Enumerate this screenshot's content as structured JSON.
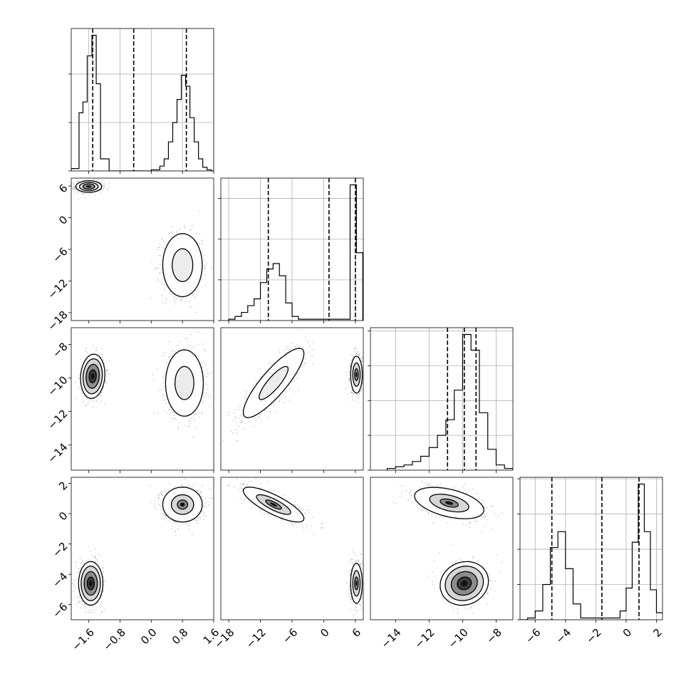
{
  "chart_data": {
    "type": "corner",
    "title": "",
    "grid": true,
    "parameters": [
      {
        "range": [
          -2.05,
          1.6
        ],
        "ticks": [
          -1.6,
          -0.8,
          0.0,
          0.8,
          1.6
        ],
        "tick_labels": [
          "−1.6",
          "−0.8",
          "0.0",
          "0.8",
          "1.6"
        ],
        "quantiles": [
          -1.5,
          -0.45,
          0.9
        ],
        "histogram": {
          "x": [
            -2.05,
            -1.85,
            -1.75,
            -1.64,
            -1.52,
            -1.41,
            -1.3,
            -1.08,
            0.0,
            0.22,
            0.33,
            0.44,
            0.55,
            0.66,
            0.77,
            0.88,
            0.99,
            1.1,
            1.21,
            1.32,
            1.43,
            1.54
          ],
          "y": [
            0.02,
            0.48,
            0.57,
            0.95,
            1.12,
            0.72,
            0.1,
            0.0,
            0.01,
            0.04,
            0.1,
            0.24,
            0.4,
            0.59,
            0.79,
            0.7,
            0.44,
            0.24,
            0.1,
            0.03,
            0.01,
            0.0
          ]
        },
        "hist_grid_y": [
          0.0,
          0.4,
          0.8
        ]
      },
      {
        "range": [
          -19.5,
          7.5
        ],
        "ticks": [
          -18,
          -12,
          -6,
          0,
          6
        ],
        "tick_labels": [
          "−18",
          "−12",
          "−6",
          "0",
          "6"
        ],
        "quantiles": [
          -10.5,
          1.0,
          6.0
        ],
        "histogram": {
          "x": [
            -18.0,
            -16.8,
            -15.6,
            -14.4,
            -13.2,
            -12.0,
            -10.8,
            -9.6,
            -8.4,
            -7.2,
            -6.0,
            -4.8,
            5.0,
            6.2
          ],
          "y": [
            0.01,
            0.03,
            0.06,
            0.11,
            0.16,
            0.28,
            0.38,
            0.42,
            0.33,
            0.13,
            0.03,
            0.01,
            1.0,
            0.5
          ]
        },
        "hist_grid_y": [
          0.0,
          0.3,
          0.6,
          0.9
        ]
      },
      {
        "range": [
          -15.5,
          -7.0
        ],
        "ticks": [
          -14,
          -12,
          -10,
          -8
        ],
        "tick_labels": [
          "−14",
          "−12",
          "−10",
          "−8"
        ],
        "quantiles": [
          -10.9,
          -9.9,
          -9.2
        ],
        "histogram": {
          "x": [
            -14.5,
            -14.0,
            -13.5,
            -13.0,
            -12.5,
            -12.0,
            -11.5,
            -11.0,
            -10.5,
            -10.0,
            -9.5,
            -9.0,
            -8.5,
            -8.0,
            -7.5
          ],
          "y": [
            0.01,
            0.02,
            0.03,
            0.05,
            0.08,
            0.13,
            0.2,
            0.29,
            0.46,
            0.78,
            0.69,
            0.33,
            0.12,
            0.03,
            0.01
          ]
        },
        "hist_grid_y": [
          0.0,
          0.2,
          0.4,
          0.6,
          0.8
        ]
      },
      {
        "range": [
          -7.0,
          2.4
        ],
        "ticks": [
          -6,
          -4,
          -2,
          0,
          2
        ],
        "tick_labels": [
          "−6",
          "−4",
          "−2",
          "0",
          "2"
        ],
        "quantiles": [
          -4.9,
          -1.6,
          0.85
        ],
        "histogram": {
          "x": [
            -7.0,
            -6.5,
            -6.0,
            -5.5,
            -5.0,
            -4.5,
            -4.0,
            -3.5,
            -3.0,
            -0.8,
            -0.4,
            0.0,
            0.4,
            0.8,
            1.2,
            1.6,
            2.0
          ],
          "y": [
            0.0,
            0.01,
            0.05,
            0.2,
            0.41,
            0.5,
            0.29,
            0.09,
            0.01,
            0.01,
            0.05,
            0.18,
            0.44,
            0.77,
            0.5,
            0.17,
            0.04
          ]
        },
        "hist_grid_y": [
          0.0,
          0.2,
          0.4,
          0.6,
          0.8
        ]
      }
    ],
    "pairs": [
      {
        "row": 1,
        "col": 0,
        "clusters": [
          {
            "center": [
              -1.6,
              5.9
            ],
            "sigma": [
              0.15,
              0.5
            ],
            "rho": 0.0,
            "weight": 0.45,
            "levels": [
              1.0,
              1.6,
              2.2
            ],
            "dark": true
          },
          {
            "center": [
              0.8,
              -9.0
            ],
            "sigma": [
              0.22,
              2.6
            ],
            "rho": 0.0,
            "weight": 0.55,
            "levels": [
              1.2,
              2.3
            ]
          }
        ]
      },
      {
        "row": 2,
        "col": 0,
        "clusters": [
          {
            "center": [
              -1.5,
              -9.9
            ],
            "sigma": [
              0.13,
              0.55
            ],
            "rho": 0.1,
            "weight": 0.45,
            "levels": [
              0.7,
              1.3,
              1.9,
              2.4
            ],
            "dark": true
          },
          {
            "center": [
              0.85,
              -10.3
            ],
            "sigma": [
              0.22,
              0.9
            ],
            "rho": 0.0,
            "weight": 0.55,
            "levels": [
              1.1,
              2.2
            ]
          }
        ]
      },
      {
        "row": 2,
        "col": 1,
        "clusters": [
          {
            "center": [
              -9.5,
              -10.3
            ],
            "sigma": [
              2.5,
              0.9
            ],
            "rho": 0.85,
            "weight": 0.55,
            "levels": [
              1.1,
              2.3
            ]
          },
          {
            "center": [
              6.2,
              -9.8
            ],
            "sigma": [
              0.5,
              0.5
            ],
            "rho": 0.0,
            "weight": 0.45,
            "levels": [
              0.7,
              1.4,
              2.2
            ],
            "dark": true
          }
        ]
      },
      {
        "row": 3,
        "col": 0,
        "clusters": [
          {
            "center": [
              -1.55,
              -4.6
            ],
            "sigma": [
              0.13,
              0.6
            ],
            "rho": 0.0,
            "weight": 0.45,
            "levels": [
              0.7,
              1.3,
              1.9,
              2.4
            ],
            "dark": true
          },
          {
            "center": [
              0.8,
              0.6
            ],
            "sigma": [
              0.22,
              0.5
            ],
            "rho": 0.0,
            "weight": 0.55,
            "levels": [
              0.6,
              1.3,
              2.3
            ],
            "dark": true
          }
        ]
      },
      {
        "row": 3,
        "col": 1,
        "clusters": [
          {
            "center": [
              -9.5,
              0.6
            ],
            "sigma": [
              2.5,
              0.5
            ],
            "rho": -0.8,
            "weight": 0.55,
            "levels": [
              0.6,
              1.3,
              2.3
            ],
            "dark": true
          },
          {
            "center": [
              6.2,
              -4.6
            ],
            "sigma": [
              0.5,
              0.6
            ],
            "rho": 0.0,
            "weight": 0.45,
            "levels": [
              0.7,
              1.4,
              2.2
            ],
            "dark": true
          }
        ]
      },
      {
        "row": 3,
        "col": 2,
        "clusters": [
          {
            "center": [
              -10.8,
              0.7
            ],
            "sigma": [
              0.9,
              0.45
            ],
            "rho": -0.45,
            "weight": 0.55,
            "levels": [
              0.6,
              1.3,
              2.3
            ],
            "dark": true
          },
          {
            "center": [
              -9.9,
              -4.6
            ],
            "sigma": [
              0.6,
              0.6
            ],
            "rho": 0.1,
            "weight": 0.45,
            "levels": [
              0.7,
              1.3,
              1.9,
              2.4
            ],
            "dark": true
          }
        ]
      }
    ]
  }
}
